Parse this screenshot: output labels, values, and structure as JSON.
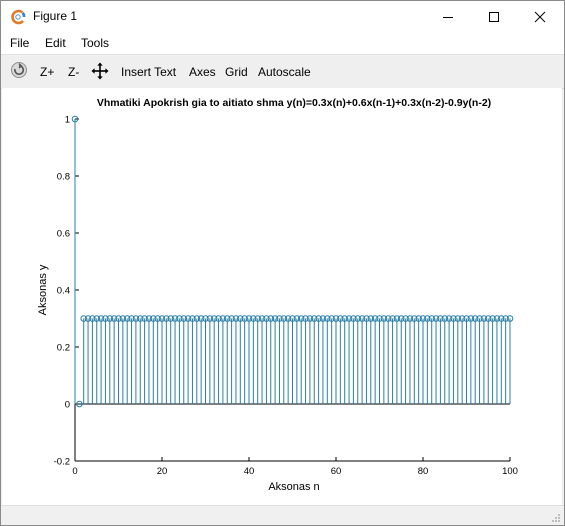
{
  "window": {
    "title": "Figure 1",
    "icon": "octave-logo-icon",
    "controls": [
      "minimize-icon",
      "maximize-icon",
      "close-icon"
    ]
  },
  "menu": {
    "file": "File",
    "edit": "Edit",
    "tools": "Tools"
  },
  "toolbar": {
    "rotate_icon": "rotate-icon",
    "zoom_in": "Z+",
    "zoom_out": "Z-",
    "pan_icon": "pan-icon",
    "insert_text": "Insert Text",
    "axes": "Axes",
    "grid": "Grid",
    "autoscale": "Autoscale"
  },
  "colors": {
    "stem": "#2a7fa6",
    "marker": "#2a7fa6",
    "zero_line": "#000000"
  },
  "chart_data": {
    "type": "stem",
    "title": "Vhmatiki Apokrish gia to  aitiato shma y(n)=0.3x(n)+0.6x(n-1)+0.3x(n-2)-0.9y(n-2)",
    "xlabel": "Aksonas n",
    "ylabel": "Aksonas y",
    "xlim": [
      0,
      100
    ],
    "ylim": [
      -0.2,
      1
    ],
    "xticks": [
      0,
      20,
      40,
      60,
      80,
      100
    ],
    "xtick_labels": [
      "0",
      "20",
      "40",
      "60",
      "80",
      "100"
    ],
    "yticks": [
      -0.2,
      0,
      0.2,
      0.4,
      0.6,
      0.8,
      1
    ],
    "ytick_labels": [
      "-0.2",
      "0",
      "0.2",
      "0.4",
      "0.6",
      "0.8",
      "1"
    ],
    "grid": false,
    "marker": "circle",
    "x_start": 0,
    "x_end": 100,
    "values": [
      1,
      0,
      0.3,
      0.3,
      0.3,
      0.3,
      0.3,
      0.3,
      0.3,
      0.3,
      0.3,
      0.3,
      0.3,
      0.3,
      0.3,
      0.3,
      0.3,
      0.3,
      0.3,
      0.3,
      0.3,
      0.3,
      0.3,
      0.3,
      0.3,
      0.3,
      0.3,
      0.3,
      0.3,
      0.3,
      0.3,
      0.3,
      0.3,
      0.3,
      0.3,
      0.3,
      0.3,
      0.3,
      0.3,
      0.3,
      0.3,
      0.3,
      0.3,
      0.3,
      0.3,
      0.3,
      0.3,
      0.3,
      0.3,
      0.3,
      0.3,
      0.3,
      0.3,
      0.3,
      0.3,
      0.3,
      0.3,
      0.3,
      0.3,
      0.3,
      0.3,
      0.3,
      0.3,
      0.3,
      0.3,
      0.3,
      0.3,
      0.3,
      0.3,
      0.3,
      0.3,
      0.3,
      0.3,
      0.3,
      0.3,
      0.3,
      0.3,
      0.3,
      0.3,
      0.3,
      0.3,
      0.3,
      0.3,
      0.3,
      0.3,
      0.3,
      0.3,
      0.3,
      0.3,
      0.3,
      0.3,
      0.3,
      0.3,
      0.3,
      0.3,
      0.3,
      0.3,
      0.3,
      0.3,
      0.3,
      0.3
    ]
  }
}
